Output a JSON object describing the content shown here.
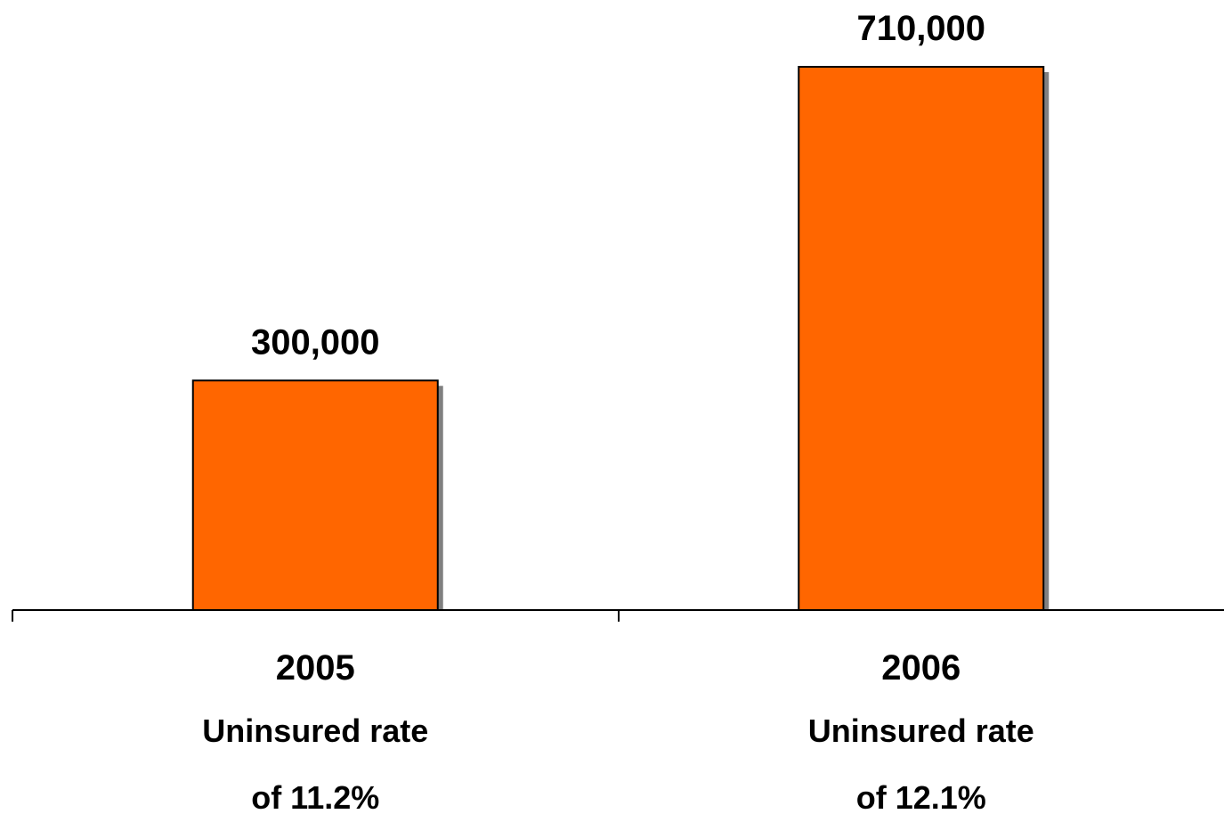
{
  "chart_data": {
    "type": "bar",
    "categories": [
      "2005",
      "2006"
    ],
    "values": [
      300000,
      710000
    ],
    "data_labels": [
      "300,000",
      "710,000"
    ],
    "category_sublabels": [
      [
        "Uninsured rate",
        "of 11.2%"
      ],
      [
        "Uninsured rate",
        "of 12.1%"
      ]
    ],
    "title": "",
    "xlabel": "",
    "ylabel": "",
    "ylim": [
      0,
      710000
    ],
    "grid": false,
    "legend": "none",
    "bar_color": "#FF6600",
    "bar_outline_color": "#000000",
    "bar_shadow_color": "#808080"
  }
}
